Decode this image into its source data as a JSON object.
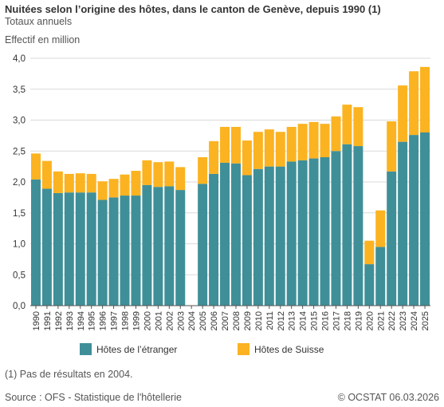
{
  "header": {
    "title": "Nuitées selon l’origine des hôtes, dans le canton de Genève, depuis 1990 (1)",
    "subtitle": "Totaux annuels",
    "unit_label": "Effectif en million"
  },
  "legend": {
    "foreign": "Hôtes de l’étranger",
    "swiss": "Hôtes de Suisse"
  },
  "footer": {
    "note": "(1) Pas de résultats en 2004.",
    "source": "Source : OFS - Statistique de l'hôtellerie",
    "copyright": "© OCSTAT 06.03.2026"
  },
  "colors": {
    "foreign": "#3f8f98",
    "swiss": "#fbb321",
    "grid": "#d9d9d9",
    "axis": "#555555"
  },
  "chart_data": {
    "type": "bar",
    "stacked": true,
    "categories": [
      "1990",
      "1991",
      "1992",
      "1993",
      "1994",
      "1995",
      "1996",
      "1997",
      "1998",
      "1999",
      "2000",
      "2001",
      "2002",
      "2003",
      "2004",
      "2005",
      "2006",
      "2007",
      "2008",
      "2009",
      "2010",
      "2011",
      "2012",
      "2013",
      "2014",
      "2015",
      "2016",
      "2017",
      "2018",
      "2019",
      "2020",
      "2021",
      "2022",
      "2023",
      "2024",
      "2025"
    ],
    "series": [
      {
        "name": "Hôtes de l’étranger",
        "values": [
          2.04,
          1.89,
          1.82,
          1.83,
          1.83,
          1.83,
          1.71,
          1.75,
          1.78,
          1.78,
          1.95,
          1.92,
          1.93,
          1.87,
          0,
          1.97,
          2.13,
          2.31,
          2.3,
          2.11,
          2.21,
          2.25,
          2.25,
          2.33,
          2.35,
          2.38,
          2.4,
          2.5,
          2.61,
          2.58,
          0.67,
          0.95,
          2.17,
          2.65,
          2.76,
          2.8
        ]
      },
      {
        "name": "Hôtes de Suisse",
        "values": [
          0.42,
          0.45,
          0.35,
          0.3,
          0.31,
          0.3,
          0.3,
          0.3,
          0.34,
          0.4,
          0.4,
          0.4,
          0.4,
          0.37,
          0,
          0.43,
          0.53,
          0.58,
          0.59,
          0.56,
          0.6,
          0.6,
          0.56,
          0.56,
          0.59,
          0.59,
          0.54,
          0.56,
          0.64,
          0.63,
          0.38,
          0.59,
          0.81,
          0.91,
          1.03,
          1.06
        ]
      }
    ],
    "ylim": [
      0,
      4
    ],
    "yticks": [
      "0,0",
      "0,5",
      "1,0",
      "1,5",
      "2,0",
      "2,5",
      "3,0",
      "3,5",
      "4,0"
    ],
    "grid": true,
    "legend_position": "bottom"
  }
}
